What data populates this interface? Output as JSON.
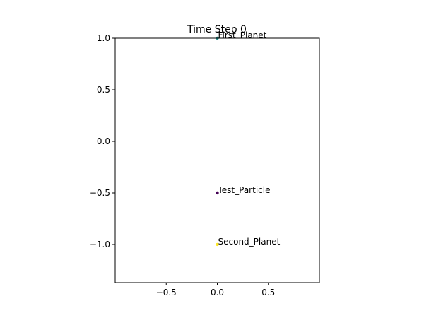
{
  "chart_data": {
    "type": "scatter",
    "title": "Time Step 0",
    "xlabel": "",
    "ylabel": "",
    "xlim": [
      -1.0,
      1.0
    ],
    "ylim": [
      -1.37,
      1.0
    ],
    "grid": false,
    "xticks": [
      -0.5,
      0.0,
      0.5
    ],
    "xtick_labels": [
      "−0.5",
      "0.0",
      "0.5"
    ],
    "yticks": [
      1.0,
      0.5,
      0.0,
      -0.5,
      -1.0
    ],
    "ytick_labels": [
      "1.0",
      "0.5",
      "0.0",
      "−0.5",
      "−1.0"
    ],
    "points": [
      {
        "label": "First_Planet",
        "x": 0.0,
        "y": 1.0,
        "color": "#21918c"
      },
      {
        "label": "Test_Particle",
        "x": 0.0,
        "y": -0.5,
        "color": "#440154"
      },
      {
        "label": "Second_Planet",
        "x": 0.0,
        "y": -1.0,
        "color": "#fde725"
      }
    ]
  }
}
